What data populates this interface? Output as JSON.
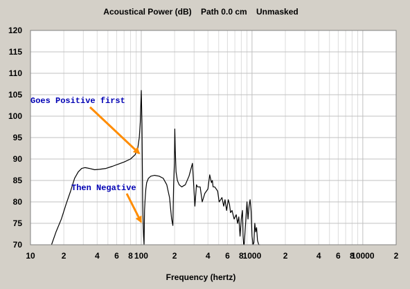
{
  "chart_data": {
    "type": "line",
    "title": "Acoustical Power (dB)    Path 0.0 cm    Unmasked",
    "xlabel": "Frequency (hertz)",
    "ylabel": "",
    "x_scale": "log",
    "xlim": [
      10,
      20000
    ],
    "ylim": [
      70,
      120
    ],
    "grid": true,
    "x_tick_labels": [
      {
        "x": 10,
        "label": "10"
      },
      {
        "x": 20,
        "label": "2"
      },
      {
        "x": 40,
        "label": "4"
      },
      {
        "x": 60,
        "label": "6"
      },
      {
        "x": 80,
        "label": "8"
      },
      {
        "x": 100,
        "label": "100"
      },
      {
        "x": 200,
        "label": "2"
      },
      {
        "x": 400,
        "label": "4"
      },
      {
        "x": 600,
        "label": "6"
      },
      {
        "x": 800,
        "label": "8"
      },
      {
        "x": 1000,
        "label": "1000"
      },
      {
        "x": 2000,
        "label": "2"
      },
      {
        "x": 4000,
        "label": "4"
      },
      {
        "x": 6000,
        "label": "6"
      },
      {
        "x": 8000,
        "label": "8"
      },
      {
        "x": 10000,
        "label": "10000"
      },
      {
        "x": 20000,
        "label": "2"
      }
    ],
    "y_tick_labels": [
      "70",
      "75",
      "80",
      "85",
      "90",
      "95",
      "100",
      "105",
      "110",
      "115",
      "120"
    ],
    "series": [
      {
        "x": [
          15.5,
          17,
          19,
          21,
          23,
          25,
          27,
          29,
          31,
          34,
          38,
          42,
          48,
          55,
          62,
          70,
          80,
          88,
          93,
          96,
          98,
          100,
          101.5,
          103,
          104,
          105,
          106,
          107,
          108,
          109,
          110,
          112,
          116,
          122,
          132,
          145,
          158,
          170,
          180,
          188,
          193,
          196,
          199,
          201,
          203,
          206,
          212,
          220,
          232,
          250,
          270,
          290,
          305,
          315,
          322,
          330,
          340,
          355,
          375,
          400,
          415,
          430,
          438,
          445,
          460,
          475,
          490,
          505,
          520,
          535,
          555,
          570,
          590,
          610,
          625,
          640,
          660,
          690,
          720,
          740,
          760,
          780,
          800,
          820,
          830,
          840,
          850,
          865,
          880,
          900,
          920,
          940,
          960,
          980,
          1000,
          1020,
          1040,
          1060,
          1080,
          1100,
          1120,
          1150,
          1180
        ],
        "y": [
          70,
          73,
          76,
          79.5,
          82.5,
          85.5,
          87,
          87.8,
          88,
          87.8,
          87.5,
          87.6,
          87.8,
          88.3,
          88.8,
          89.3,
          90,
          91,
          92.5,
          95,
          98.5,
          106,
          98,
          80,
          75,
          72,
          70,
          78,
          80,
          81.5,
          83,
          84.5,
          85.5,
          86,
          86.2,
          86,
          85.5,
          84,
          81,
          76,
          74.5,
          84,
          89,
          97,
          92,
          87,
          85,
          84,
          83.5,
          84,
          86,
          89,
          79,
          84,
          83.5,
          83.5,
          83.5,
          80,
          82,
          83,
          86.3,
          84.5,
          85,
          83.5,
          83.5,
          83,
          82.5,
          80,
          80.5,
          81,
          79,
          80.5,
          78,
          80.5,
          79.5,
          77.5,
          78,
          76,
          77,
          75,
          76.5,
          72,
          76,
          78,
          72,
          70,
          70,
          73,
          76,
          80,
          76,
          79,
          80.5,
          78,
          72,
          70,
          70.5,
          75,
          73,
          74,
          71,
          70,
          70
        ]
      }
    ],
    "annotations": [
      {
        "text": "Goes Positive first",
        "arrow_to": [
          100,
          91
        ]
      },
      {
        "text": "Then Negative",
        "arrow_to": [
          104,
          75
        ]
      }
    ],
    "colors": {
      "line": "#000000",
      "arrow": "#ff8c00",
      "annotation_text": "#0000b4",
      "background": "#d4d0c8",
      "plot_bg": "#ffffff",
      "grid": "#c0c0c0"
    }
  }
}
